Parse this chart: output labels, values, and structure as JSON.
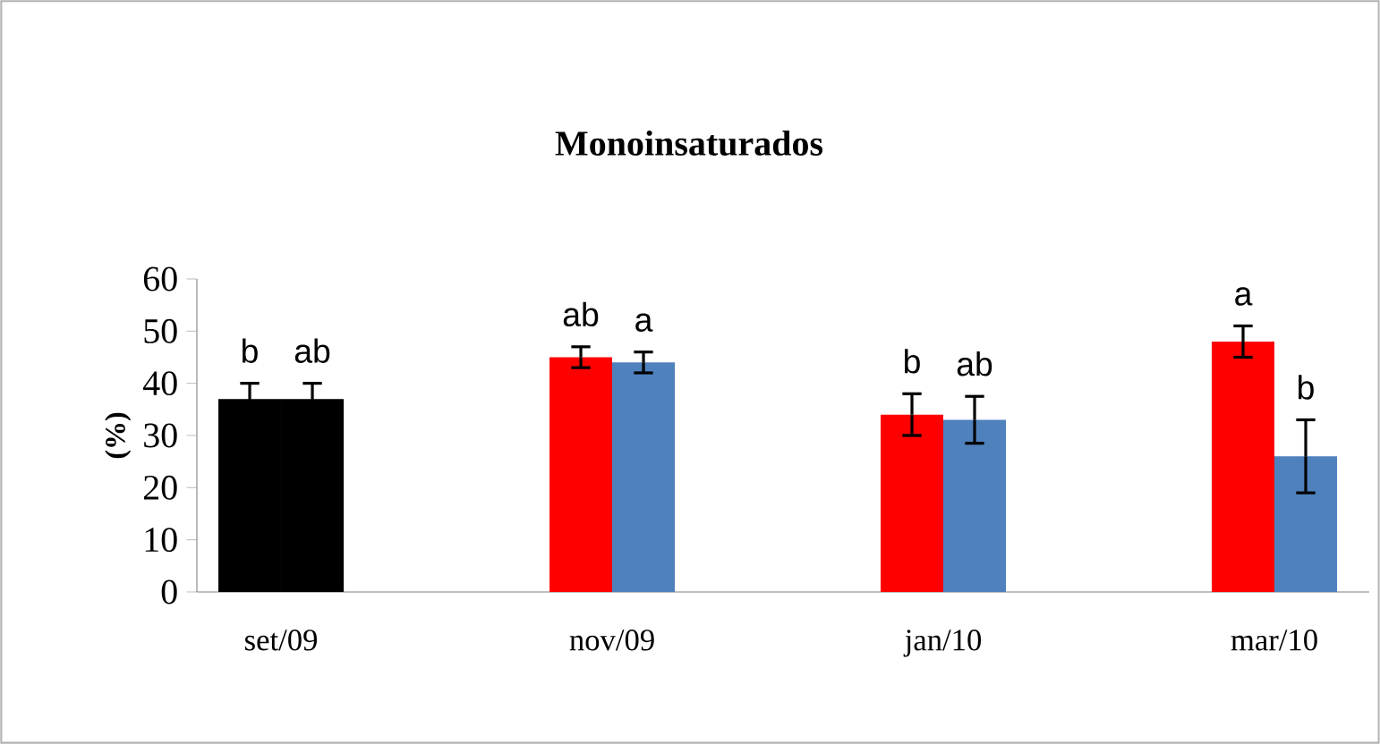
{
  "chart_data": {
    "type": "bar",
    "title": "Monoinsaturados",
    "ylabel": "(%)",
    "categories": [
      "set/09",
      "nov/09",
      "jan/10",
      "mar/10"
    ],
    "series": [
      {
        "colors": [
          "#000000",
          "#ff0000",
          "#ff0000",
          "#ff0000"
        ],
        "values": [
          37,
          45,
          34,
          48
        ],
        "errors": [
          3,
          2,
          4,
          3
        ]
      },
      {
        "colors": [
          "#000000",
          "#4f81bd",
          "#4f81bd",
          "#4f81bd"
        ],
        "values": [
          37,
          44,
          33,
          26
        ],
        "errors": [
          3,
          2,
          4.5,
          7
        ]
      }
    ],
    "ylim": [
      0,
      60
    ],
    "yticks": [
      0,
      10,
      20,
      30,
      40,
      50,
      60
    ],
    "grid": false,
    "annotations": [
      "b",
      "ab",
      "ab",
      "a",
      "b",
      "ab",
      "a",
      "b"
    ]
  }
}
